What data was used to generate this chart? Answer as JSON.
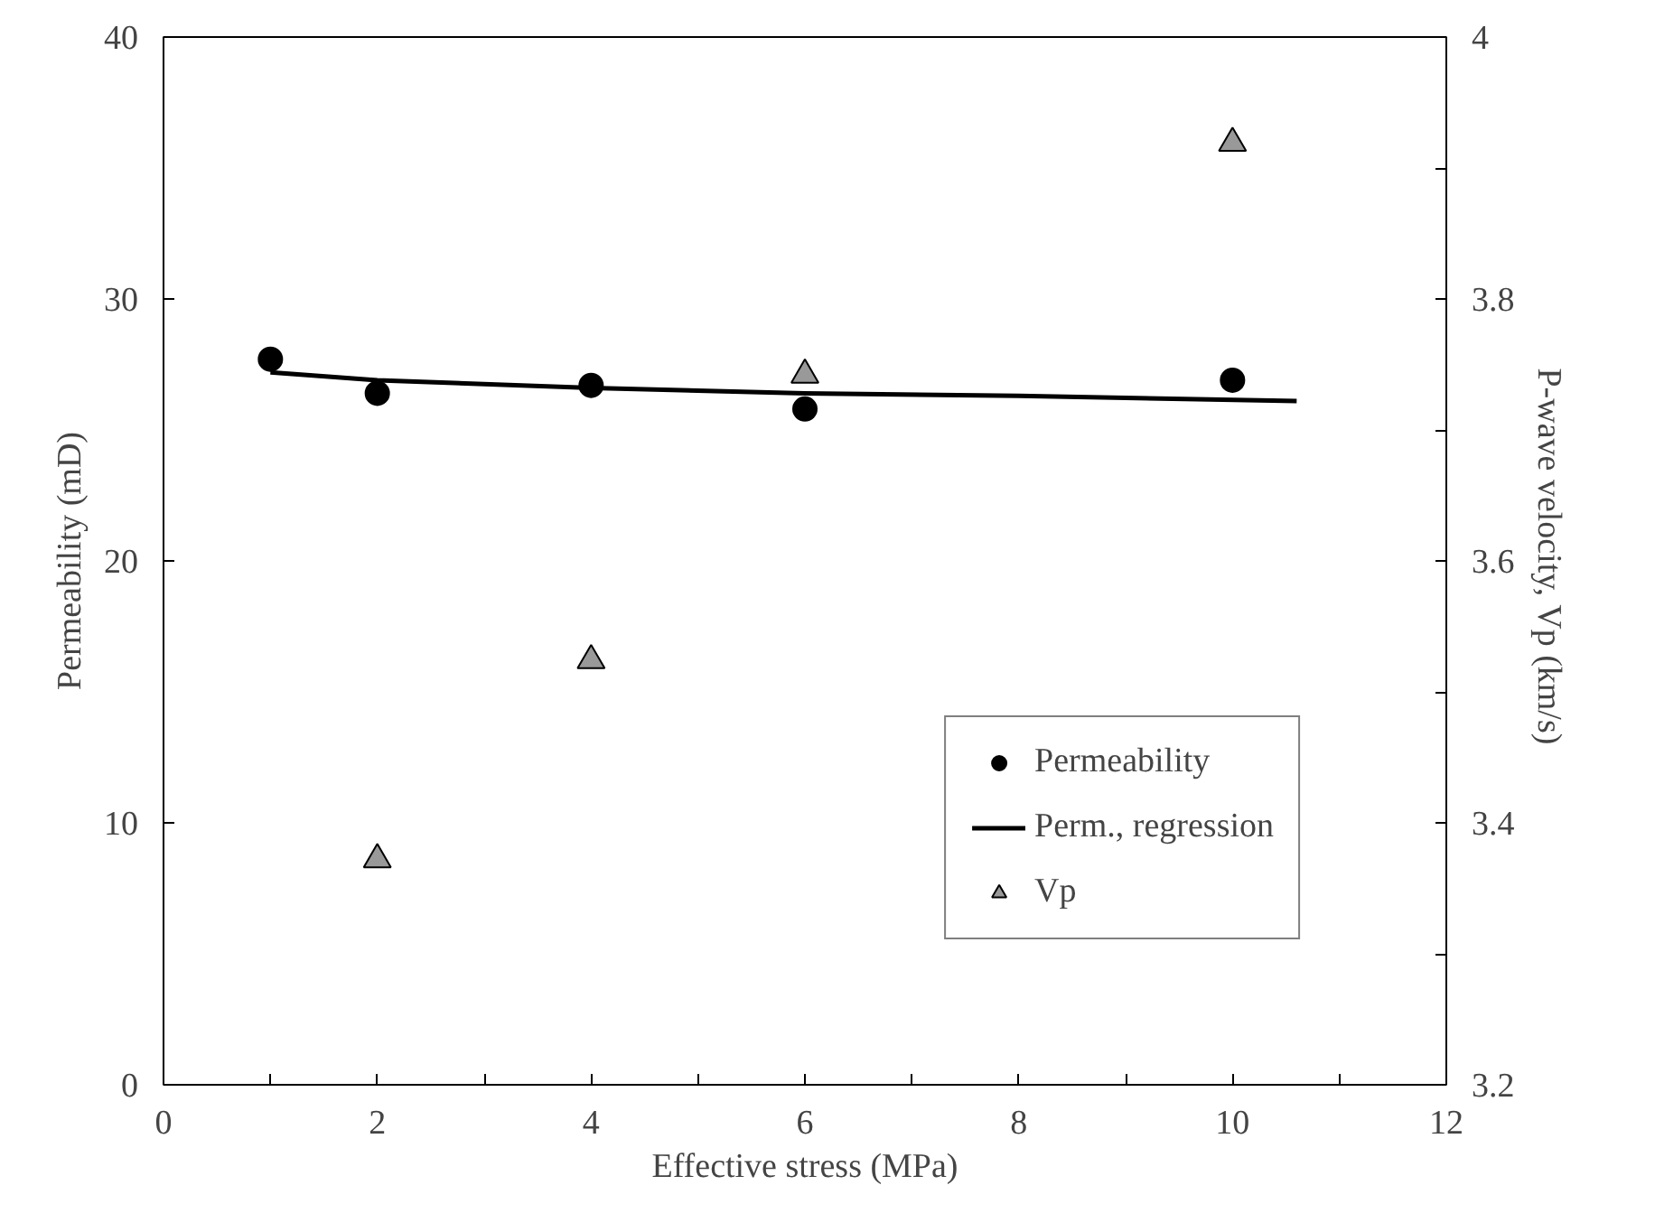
{
  "chart_data": {
    "type": "scatter",
    "xlabel": "Effective stress (MPa)",
    "ylabel": "Permeability (mD)",
    "y2label": "P-wave velocity, Vp  (km/s)",
    "xlim": [
      0,
      12
    ],
    "xticks": [
      0,
      {
        "value": 1,
        "label": null
      },
      2,
      {
        "value": 3,
        "label": null
      },
      4,
      {
        "value": 5,
        "label": null
      },
      6,
      {
        "value": 7,
        "label": null
      },
      8,
      {
        "value": 9,
        "label": null
      },
      10,
      {
        "value": 11,
        "label": null
      },
      12
    ],
    "ylim": [
      0,
      40
    ],
    "yticks": [
      0,
      10,
      20,
      30,
      40
    ],
    "y2lim": [
      3.2,
      4.0
    ],
    "y2ticks": [
      3.2,
      {
        "value": 3.3,
        "label": null
      },
      3.4,
      {
        "value": 3.5,
        "label": null
      },
      3.6,
      {
        "value": 3.7,
        "label": null
      },
      3.8,
      {
        "value": 3.9,
        "label": null
      },
      4
    ],
    "grid": false,
    "legend": "bottom right",
    "series": [
      {
        "name": "Permeability",
        "marker": "circle",
        "color": "#000000",
        "x": [
          1,
          2,
          4,
          6,
          10
        ],
        "values": [
          27.7,
          26.4,
          26.7,
          25.8,
          26.9
        ]
      },
      {
        "name": "Perm., regression",
        "type": "line",
        "line_style": "solid",
        "marker": "none",
        "color": "#000000",
        "x": [
          1,
          2,
          4,
          6,
          8,
          10.6
        ],
        "values": [
          27.2,
          26.9,
          26.6,
          26.4,
          26.3,
          26.1
        ]
      },
      {
        "name": "Vp",
        "marker": "triangle",
        "axis": "y2",
        "color": "#999999",
        "x": [
          2,
          4,
          6,
          10
        ],
        "values": [
          3.372,
          3.524,
          3.742,
          3.919
        ]
      }
    ]
  }
}
